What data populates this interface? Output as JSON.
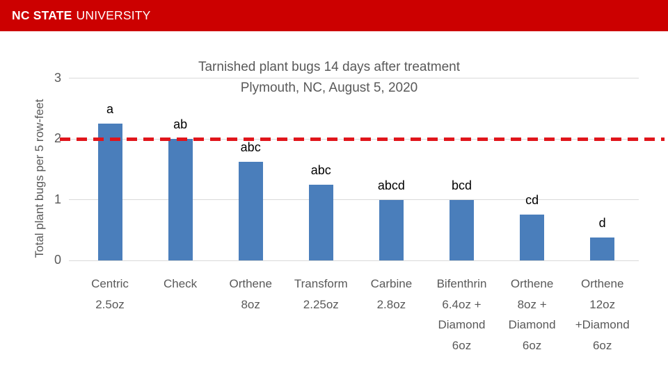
{
  "header": {
    "brand_bold": "NC STATE",
    "brand_regular": "UNIVERSITY",
    "banner_color": "#cc0000",
    "text_color": "#ffffff"
  },
  "chart_data": {
    "type": "bar",
    "title_line1": "Tarnished plant bugs 14 days after treatment",
    "title_line2": "Plymouth, NC, August 5, 2020",
    "ylabel": "Total plant bugs per 5 row-feet",
    "xlabel": "",
    "ylim": [
      0,
      3
    ],
    "yticks": [
      0,
      1,
      2,
      3
    ],
    "grid": "horizontal",
    "legend": "none",
    "bar_color": "#4a7ebb",
    "text_color": "#595959",
    "gridline_color": "#d9d9d9",
    "categories": [
      [
        "Centric",
        "2.5oz"
      ],
      [
        "Check"
      ],
      [
        "Orthene",
        "8oz"
      ],
      [
        "Transform",
        "2.25oz"
      ],
      [
        "Carbine",
        "2.8oz"
      ],
      [
        "Bifenthrin",
        "6.4oz +",
        "Diamond",
        "6oz"
      ],
      [
        "Orthene",
        "8oz +",
        "Diamond",
        "6oz"
      ],
      [
        "Orthene",
        "12oz",
        "+Diamond",
        "6oz"
      ]
    ],
    "values": [
      2.25,
      2.0,
      1.625,
      1.25,
      1.0,
      1.0,
      0.75,
      0.375
    ],
    "bar_labels": [
      "a",
      "ab",
      "abc",
      "abc",
      "abcd",
      "bcd",
      "cd",
      "d"
    ],
    "reference_line": {
      "value": 2,
      "color": "#e0151b",
      "style": "dashed"
    }
  }
}
